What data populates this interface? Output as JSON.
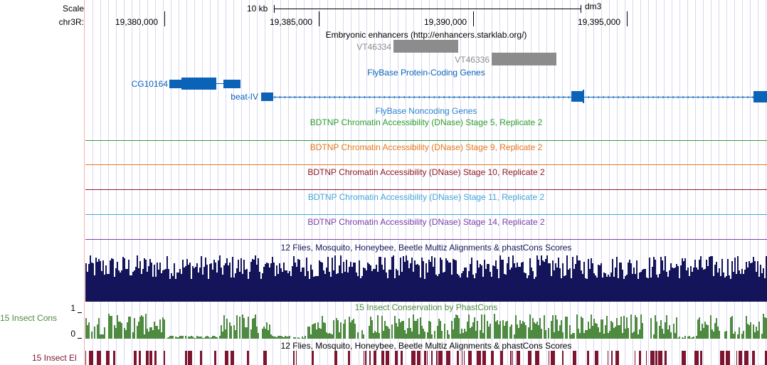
{
  "header": {
    "scale_label": "Scale",
    "scale_value": "10 kb",
    "assembly": "dm3",
    "chrom_label": "chr3R:",
    "positions": [
      "19,380,000",
      "19,385,000",
      "19,390,000",
      "19,395,000"
    ]
  },
  "tracks": {
    "enhancers": {
      "title": "Embryonic enhancers (http://enhancers.starklab.org/)",
      "items": [
        "VT46334",
        "VT46336"
      ],
      "color": "#8c8c8c"
    },
    "flybase_coding": {
      "title": "FlyBase Protein-Coding Genes",
      "genes": [
        "CG10164",
        "beat-IV"
      ],
      "color": "#0b63b8"
    },
    "flybase_noncoding": {
      "title": "FlyBase Noncoding Genes",
      "color": "#2a84cf"
    },
    "dnase": [
      {
        "title": "BDTNP Chromatin Accessibility (DNase) Stage 5, Replicate 2",
        "color": "#2d9e2d"
      },
      {
        "title": "BDTNP Chromatin Accessibility (DNase) Stage 9, Replicate 2",
        "color": "#e8781c"
      },
      {
        "title": "BDTNP Chromatin Accessibility (DNase) Stage 10, Replicate 2",
        "color": "#8e1a24"
      },
      {
        "title": "BDTNP Chromatin Accessibility (DNase) Stage 11, Replicate 2",
        "color": "#44a6d6"
      },
      {
        "title": "BDTNP Chromatin Accessibility (DNase) Stage 14, Replicate 2",
        "color": "#7b3fa6"
      }
    ],
    "multiz": {
      "title": "12 Flies, Mosquito, Honeybee, Beetle Multiz Alignments & phastCons Scores",
      "color": "#14145a"
    },
    "insect_cons": {
      "title": "15 Insect Conservation by PhastCons",
      "side_label": "15 Insect Cons",
      "axis_max": "1",
      "axis_min": "0",
      "color": "#4e8a3f"
    },
    "insect_el": {
      "title": "12 Flies, Mosquito, Honeybee, Beetle Multiz Alignments & phastCons Scores",
      "side_label": "15 Insect El",
      "color": "#7d1530"
    }
  }
}
